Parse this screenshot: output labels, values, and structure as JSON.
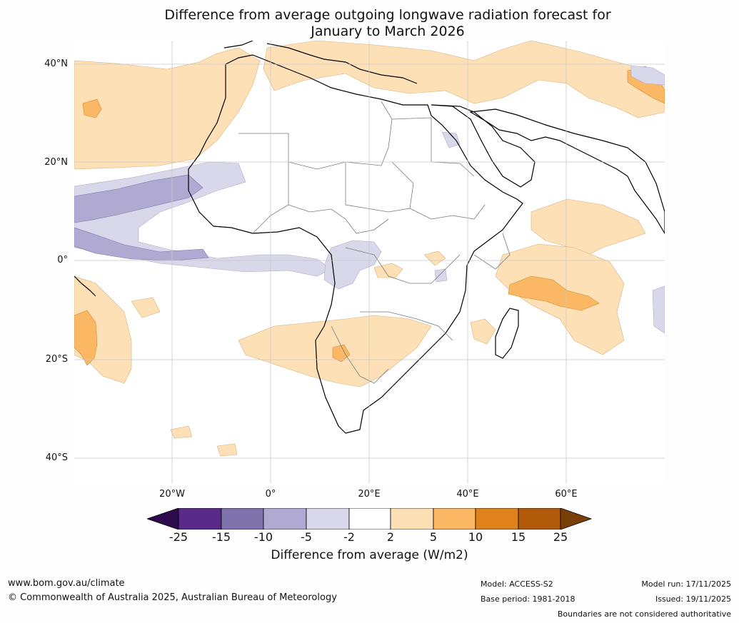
{
  "title_line1": "Difference from average outgoing longwave radiation forecast for",
  "title_line2": "January to March 2026",
  "lat_labels": [
    "40°N",
    "20°N",
    "0°",
    "20°S",
    "40°S"
  ],
  "lon_labels": [
    "20°W",
    "0°",
    "20°E",
    "40°E",
    "60°E"
  ],
  "colorbar": {
    "ticks": [
      "-25",
      "-15",
      "-10",
      "-5",
      "-2",
      "2",
      "5",
      "10",
      "15",
      "25"
    ],
    "colors": [
      "#2d0a4e",
      "#5a2a88",
      "#8072ad",
      "#b0aad2",
      "#d8d8ea",
      "#ffffff",
      "#fde0b6",
      "#fbb864",
      "#e0821c",
      "#b05a0a",
      "#7a3e08"
    ],
    "label": "Difference from average (W/m2)"
  },
  "footer": {
    "website": "www.bom.gov.au/climate",
    "copyright": "© Commonwealth of Australia 2025, Australian Bureau of Meteorology",
    "model": "Model: ACCESS-S2",
    "base_period": "Base period: 1981-2018",
    "model_run": "Model run: 17/11/2025",
    "issued": "Issued: 19/11/2025",
    "disclaimer": "Boundaries are not considered authoritative"
  }
}
